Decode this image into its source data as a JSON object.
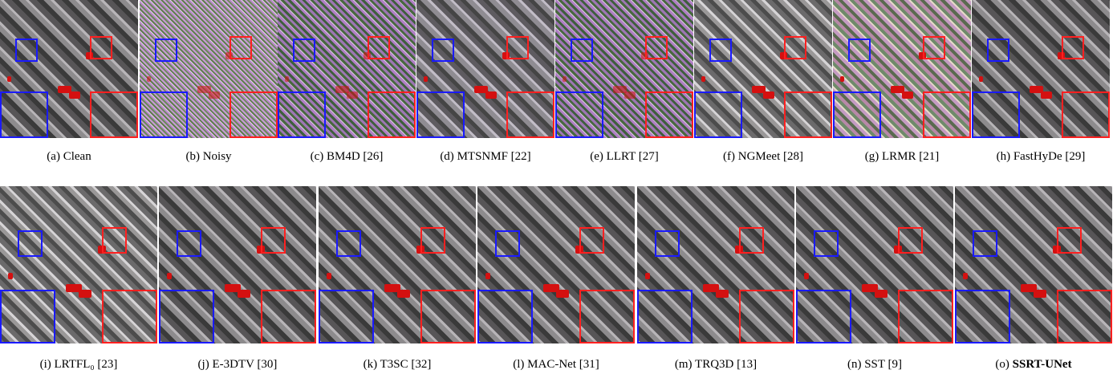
{
  "panels": [
    {
      "letter": "(a)",
      "label": "Clean",
      "style": "clean"
    },
    {
      "letter": "(b)",
      "label": "Noisy",
      "style": "noisy"
    },
    {
      "letter": "(c)",
      "label": "BM4D [26]",
      "style": "noisy2"
    },
    {
      "letter": "(d)",
      "label": "MTSNMF [22]",
      "style": "mid"
    },
    {
      "letter": "(e)",
      "label": "LLRT [27]",
      "style": "noisy2"
    },
    {
      "letter": "(f)",
      "label": "NGMeet [28]",
      "style": "gray"
    },
    {
      "letter": "(g)",
      "label": "LRMR [21]",
      "style": "color"
    },
    {
      "letter": "(h)",
      "label": "FastHyDe [29]",
      "style": "clean"
    },
    {
      "letter": "(i)",
      "label": "LRTFL₀ [23]",
      "style": "gray"
    },
    {
      "letter": "(j)",
      "label": "E-3DTV [30]",
      "style": "clean"
    },
    {
      "letter": "(k)",
      "label": "T3SC [32]",
      "style": "clean"
    },
    {
      "letter": "(l)",
      "label": "MAC-Net [31]",
      "style": "clean"
    },
    {
      "letter": "(m)",
      "label": "TRQ3D [13]",
      "style": "clean"
    },
    {
      "letter": "(n)",
      "label": "SST [9]",
      "style": "clean"
    },
    {
      "letter": "(o)",
      "label": "SSRT-UNet",
      "style": "clean",
      "bold": true
    }
  ],
  "colors": {
    "roi_blue": "#1a1aff",
    "roi_red": "#ff2020"
  }
}
